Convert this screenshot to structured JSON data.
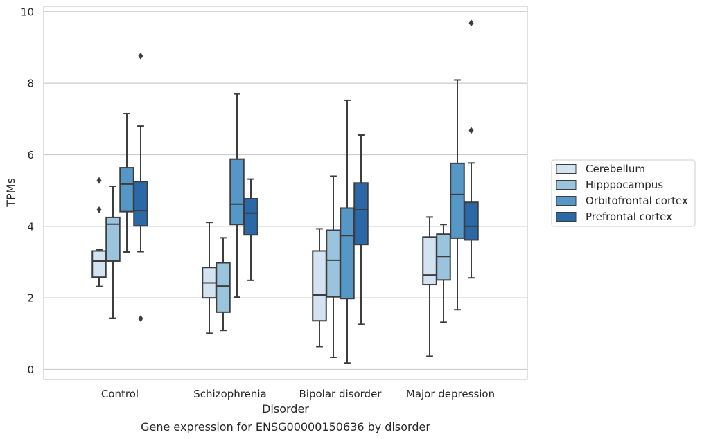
{
  "chart_data": {
    "type": "box",
    "xlabel": "Disorder",
    "ylabel": "TPMs",
    "caption": "Gene expression for ENSG00000150636 by disorder",
    "ylim": [
      -0.28,
      10.15
    ],
    "yticks": [
      0,
      2,
      4,
      6,
      8,
      10
    ],
    "grid": "horizontal",
    "legend_position": "right",
    "categories": [
      "Control",
      "Schizophrenia",
      "Bipolar disorder",
      "Major depression"
    ],
    "series": [
      {
        "name": "Cerebellum",
        "color": "#d4e3f1",
        "boxes": [
          {
            "whislo": 2.32,
            "q1": 2.58,
            "med": 3.03,
            "q3": 3.31,
            "whishi": 3.35,
            "fliers": [
              4.46,
              5.28
            ]
          },
          {
            "whislo": 1.01,
            "q1": 2.0,
            "med": 2.42,
            "q3": 2.85,
            "whishi": 4.11,
            "fliers": []
          },
          {
            "whislo": 0.64,
            "q1": 1.36,
            "med": 2.08,
            "q3": 3.31,
            "whishi": 3.93,
            "fliers": []
          },
          {
            "whislo": 0.37,
            "q1": 2.37,
            "med": 2.64,
            "q3": 3.7,
            "whishi": 4.26,
            "fliers": []
          }
        ]
      },
      {
        "name": "Hipppocampus",
        "color": "#9ac4dd",
        "boxes": [
          {
            "whislo": 1.43,
            "q1": 3.03,
            "med": 4.06,
            "q3": 4.25,
            "whishi": 5.12,
            "fliers": []
          },
          {
            "whislo": 1.09,
            "q1": 1.6,
            "med": 2.33,
            "q3": 2.98,
            "whishi": 3.68,
            "fliers": []
          },
          {
            "whislo": 0.34,
            "q1": 2.03,
            "med": 3.05,
            "q3": 3.89,
            "whishi": 5.4,
            "fliers": []
          },
          {
            "whislo": 1.32,
            "q1": 2.5,
            "med": 3.16,
            "q3": 3.78,
            "whishi": 4.05,
            "fliers": []
          }
        ]
      },
      {
        "name": "Orbitofrontal cortex",
        "color": "#5597c6",
        "boxes": [
          {
            "whislo": 3.28,
            "q1": 4.41,
            "med": 5.18,
            "q3": 5.64,
            "whishi": 7.15,
            "fliers": []
          },
          {
            "whislo": 2.02,
            "q1": 4.05,
            "med": 4.62,
            "q3": 5.88,
            "whishi": 7.7,
            "fliers": []
          },
          {
            "whislo": 0.18,
            "q1": 1.98,
            "med": 3.74,
            "q3": 4.51,
            "whishi": 7.52,
            "fliers": []
          },
          {
            "whislo": 1.67,
            "q1": 3.67,
            "med": 4.89,
            "q3": 5.76,
            "whishi": 8.09,
            "fliers": []
          }
        ]
      },
      {
        "name": "Prefrontal cortex",
        "color": "#2a68a8",
        "boxes": [
          {
            "whislo": 3.29,
            "q1": 4.01,
            "med": 4.44,
            "q3": 5.25,
            "whishi": 6.8,
            "fliers": [
              8.76,
              1.42
            ]
          },
          {
            "whislo": 2.49,
            "q1": 3.76,
            "med": 4.37,
            "q3": 4.77,
            "whishi": 5.32,
            "fliers": []
          },
          {
            "whislo": 1.26,
            "q1": 3.49,
            "med": 4.46,
            "q3": 5.21,
            "whishi": 6.55,
            "fliers": []
          },
          {
            "whislo": 2.56,
            "q1": 3.62,
            "med": 4.0,
            "q3": 4.67,
            "whishi": 5.77,
            "fliers": [
              6.68,
              9.68
            ]
          }
        ]
      }
    ]
  }
}
